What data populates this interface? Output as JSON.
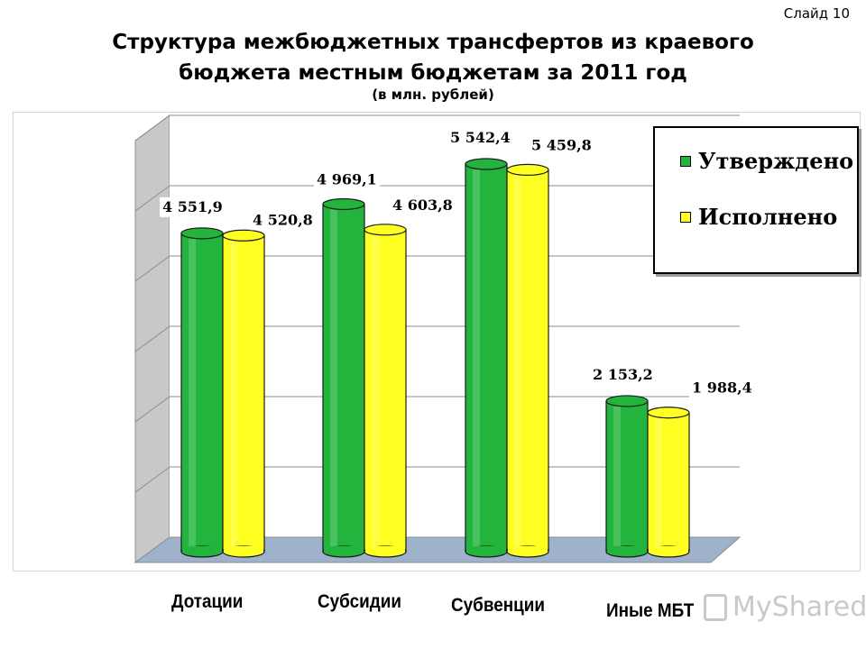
{
  "slide_label": "Слайд 10",
  "title_line1": "Структура межбюджетных трансфертов из краевого",
  "title_line2": "бюджета местным бюджетам за 2011 год",
  "subtitle": "(в млн. рублей)",
  "watermark": "MyShared",
  "colors": {
    "approved": "#22b43c",
    "executed": "#ffff22",
    "floor": "#9fb2cb",
    "wall": "#c8c8c8"
  },
  "chart_data": {
    "type": "bar",
    "categories": [
      "Дотации",
      "Субсидии",
      "Субвенции",
      "Иные МБТ"
    ],
    "series": [
      {
        "name": "Утверждено",
        "values": [
          4551.9,
          4969.1,
          5542.4,
          2153.2
        ],
        "labels": [
          "4 551,9",
          "4 969,1",
          "5 542,4",
          "2 153,2"
        ]
      },
      {
        "name": "Исполнено",
        "values": [
          4520.8,
          4603.8,
          5459.8,
          1988.4
        ],
        "labels": [
          "4 520,8",
          "4 603,8",
          "5 459,8",
          "1 988,4"
        ]
      }
    ],
    "ylim": [
      0,
      6000
    ],
    "grid": true,
    "legend": "top-right"
  }
}
